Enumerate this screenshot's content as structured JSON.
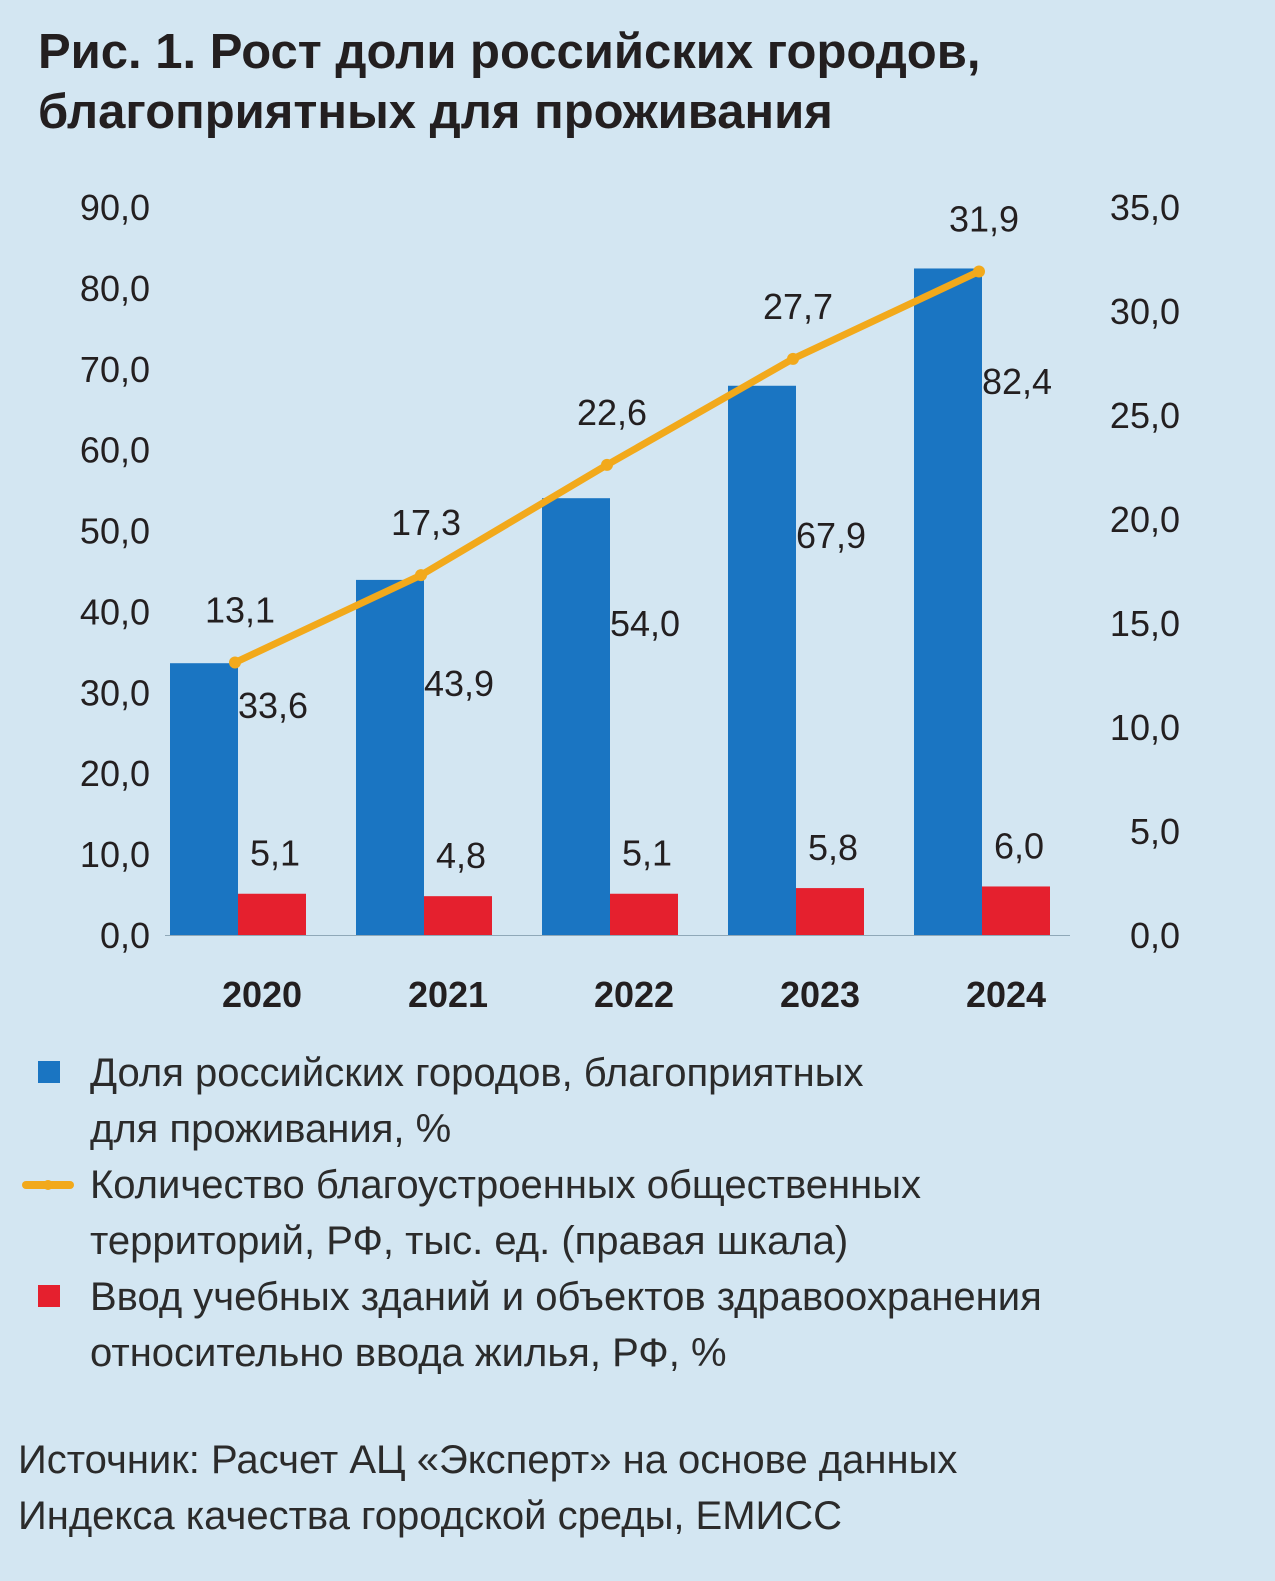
{
  "title": {
    "line1": "Рис. 1. Рост доли российских городов,",
    "line2": "благоприятных для проживания"
  },
  "chart_data": {
    "type": "bar",
    "categories": [
      "2020",
      "2021",
      "2022",
      "2023",
      "2024"
    ],
    "series": [
      {
        "name": "Доля российских городов, благоприятных для проживания, %",
        "kind": "bar",
        "axis": "left",
        "color": "#1a75c2",
        "values": [
          33.6,
          43.9,
          54.0,
          67.9,
          82.4
        ],
        "labels": [
          "33,6",
          "43,9",
          "54,0",
          "67,9",
          "82,4"
        ]
      },
      {
        "name": "Ввод учебных зданий и объектов здравоохранения относительно ввода жилья, РФ, %",
        "kind": "bar",
        "axis": "left",
        "color": "#e5202e",
        "values": [
          5.1,
          4.8,
          5.1,
          5.8,
          6.0
        ],
        "labels": [
          "5,1",
          "4,8",
          "5,1",
          "5,8",
          "6,0"
        ]
      },
      {
        "name": "Количество благоустроенных общественных территорий, РФ, тыс. ед. (правая шкала)",
        "kind": "line",
        "axis": "right",
        "color": "#f2a91b",
        "values": [
          13.1,
          17.3,
          22.6,
          27.7,
          31.9
        ],
        "labels": [
          "13,1",
          "17,3",
          "22,6",
          "27,7",
          "31,9"
        ]
      }
    ],
    "left_axis": {
      "range": [
        0,
        90
      ],
      "ticks": [
        0,
        10,
        20,
        30,
        40,
        50,
        60,
        70,
        80,
        90
      ],
      "tick_labels": [
        "0,0",
        "10,0",
        "20,0",
        "30,0",
        "40,0",
        "50,0",
        "60,0",
        "70,0",
        "80,0",
        "90,0"
      ]
    },
    "right_axis": {
      "range": [
        0,
        35
      ],
      "ticks": [
        0,
        5,
        10,
        15,
        20,
        25,
        30,
        35
      ],
      "tick_labels": [
        "0,0",
        "5,0",
        "10,0",
        "15,0",
        "20,0",
        "25,0",
        "30,0",
        "35,0"
      ]
    },
    "grid": false
  },
  "legend": {
    "items": [
      {
        "line1": "Доля российских городов, благоприятных",
        "line2": "для проживания, %",
        "color": "#1a75c2",
        "marker": "square"
      },
      {
        "line1": "Количество благоустроенных общественных",
        "line2": "территорий, РФ, тыс. ед. (правая шкала)",
        "color": "#f2a91b",
        "marker": "line"
      },
      {
        "line1": "Ввод учебных зданий и объектов здравоохранения",
        "line2": "относительно ввода жилья, РФ, %",
        "color": "#e5202e",
        "marker": "square"
      }
    ]
  },
  "source": {
    "line1": "Источник: Расчет АЦ «Эксперт» на основе данных",
    "line2": "Индекса качества городской среды, ЕМИСС"
  }
}
